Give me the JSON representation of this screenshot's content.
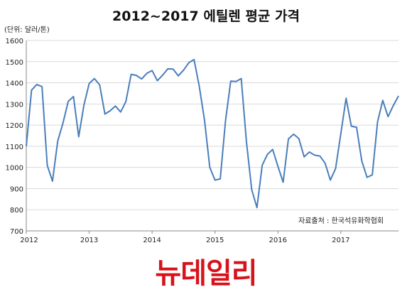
{
  "header": {
    "title": "2012~2017 에틸렌 평균 가격",
    "unit_note": "(단위: 달러/톤)",
    "source_note": "자료출처 : 한국석유화학협회"
  },
  "brand": {
    "logo_text": "뉴데일리",
    "color": "#d7121b"
  },
  "chart_data": {
    "type": "line",
    "title": "2012~2017 에틸렌 평균 가격",
    "ylabel": "(단위: 달러/톤)",
    "xlabel": "",
    "ylim": [
      700,
      1600
    ],
    "yticks": [
      700,
      800,
      900,
      1000,
      1100,
      1200,
      1300,
      1400,
      1500,
      1600
    ],
    "xticks": [
      "2012",
      "2013",
      "2014",
      "2015",
      "2016",
      "2017"
    ],
    "grid": true,
    "line_color": "#4a7ebb",
    "series": [
      {
        "values": [
          1100,
          1365,
          1392,
          1382,
          1010,
          935,
          1125,
          1210,
          1312,
          1335,
          1145,
          1295,
          1397,
          1420,
          1390,
          1252,
          1268,
          1290,
          1262,
          1312,
          1440,
          1435,
          1418,
          1445,
          1458,
          1410,
          1436,
          1466,
          1465,
          1433,
          1460,
          1495,
          1510,
          1383,
          1223,
          1000,
          940,
          946,
          1220,
          1408,
          1406,
          1420,
          1120,
          895,
          810,
          1010,
          1062,
          1085,
          1005,
          930,
          1135,
          1157,
          1136,
          1050,
          1073,
          1058,
          1054,
          1020,
          940,
          995,
          1160,
          1327,
          1195,
          1190,
          1030,
          953,
          965,
          1215,
          1317,
          1240,
          1292,
          1338
        ]
      }
    ]
  }
}
